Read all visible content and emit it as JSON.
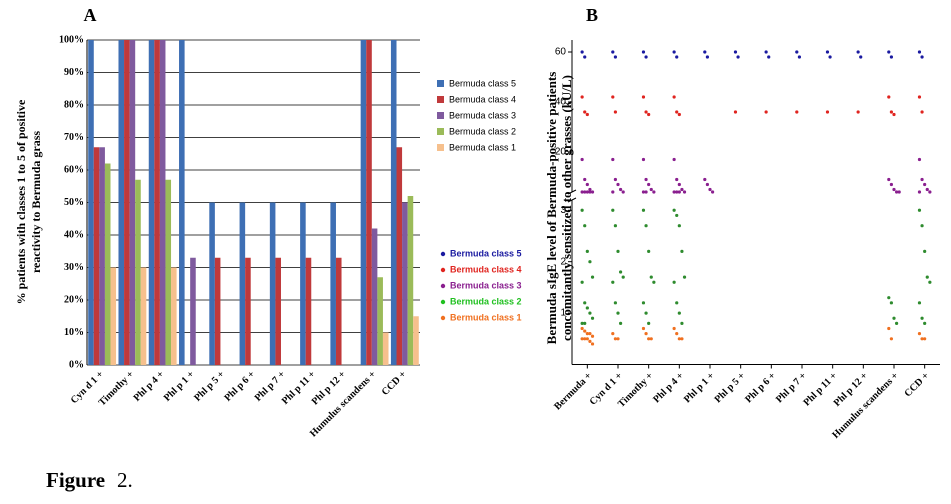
{
  "chart_data": [
    {
      "type": "bar",
      "title": "A",
      "ylabel": [
        "% patients with classes 1 to 5 of positive",
        "reactivity to Bermuda grass"
      ],
      "categories": [
        "Cyn d 1 +",
        "Timothy +",
        "Phl p 4 +",
        "Phl p 1 +",
        "Phl p 5 +",
        "Phl p 6 +",
        "Phl p 7 +",
        "Phl p 11 +",
        "Phl p 12 +",
        "Humulus scandens +",
        "CCD +"
      ],
      "series": [
        {
          "name": "Bermuda class 5",
          "color": "#3e6fb4",
          "values": [
            100,
            100,
            100,
            100,
            50,
            50,
            50,
            50,
            50,
            100,
            100
          ]
        },
        {
          "name": "Bermuda class 4",
          "color": "#c0393b",
          "values": [
            67,
            100,
            100,
            0,
            33,
            33,
            33,
            33,
            33,
            100,
            67
          ]
        },
        {
          "name": "Bermuda class 3",
          "color": "#7f5a9e",
          "values": [
            67,
            100,
            100,
            33,
            0,
            0,
            0,
            0,
            0,
            42,
            50
          ]
        },
        {
          "name": "Bermuda class 2",
          "color": "#9bbb59",
          "values": [
            62,
            57,
            57,
            0,
            0,
            0,
            0,
            0,
            0,
            27,
            52
          ]
        },
        {
          "name": "Bermuda class 1",
          "color": "#f6c08d",
          "values": [
            30,
            30,
            30,
            0,
            0,
            0,
            0,
            0,
            0,
            10,
            15
          ]
        }
      ],
      "ylim": [
        0,
        100
      ],
      "yticks": [
        {
          "value": 0,
          "label": "0%"
        },
        {
          "value": 10,
          "label": "10%"
        },
        {
          "value": 20,
          "label": "20%"
        },
        {
          "value": 30,
          "label": "30%"
        },
        {
          "value": 40,
          "label": "40%"
        },
        {
          "value": 50,
          "label": "50%"
        },
        {
          "value": 60,
          "label": "60%"
        },
        {
          "value": 70,
          "label": "70%"
        },
        {
          "value": 80,
          "label": "80%"
        },
        {
          "value": 90,
          "label": "90%"
        },
        {
          "value": 100,
          "label": "100%"
        }
      ],
      "grid": true,
      "legend": "right"
    },
    {
      "type": "scatter",
      "title": "B",
      "ylabel": [
        "Bermuda  sIgE level of Bermuda-positive patients",
        "concomitantly sensitized to other grasses (kU/L)"
      ],
      "categories": [
        "Bermuda +",
        "Cyn d 1 +",
        "Timothy +",
        "Phl p 4 +",
        "Phl p 1 +",
        "Phl p 5 +",
        "Phl p 6 +",
        "Phl p 7 +",
        "Phl p 11 +",
        "Phl p 12 +",
        "Humulus scandens +",
        "CCD +"
      ],
      "series": [
        {
          "name": "Bermuda class 5",
          "color": "#1a1aa0",
          "values": [
            [
              60,
              58
            ],
            [
              60,
              58
            ],
            [
              60,
              58
            ],
            [
              60,
              58
            ],
            [
              60,
              58
            ],
            [
              60,
              58
            ],
            [
              60,
              58
            ],
            [
              60,
              58
            ],
            [
              60,
              58
            ],
            [
              60,
              58
            ],
            [
              60,
              58
            ],
            [
              60,
              58
            ]
          ]
        },
        {
          "name": "Bermuda class 4",
          "color": "#e0241f",
          "values": [
            [
              42,
              36,
              35
            ],
            [
              42,
              36
            ],
            [
              42,
              36,
              35
            ],
            [
              42,
              36,
              35
            ],
            [],
            [
              36
            ],
            [
              36
            ],
            [
              36
            ],
            [
              36
            ],
            [
              36
            ],
            [
              42,
              36,
              35
            ],
            [
              42,
              36
            ]
          ]
        },
        {
          "name": "Bermuda class 3",
          "color": "#8a1f8f",
          "values": [
            [
              17,
              9,
              7,
              5,
              4,
              4,
              4,
              4,
              4
            ],
            [
              17,
              9,
              7,
              5,
              4,
              4
            ],
            [
              17,
              9,
              7,
              5,
              4,
              4,
              4
            ],
            [
              17,
              9,
              7,
              5,
              4,
              4,
              4,
              4
            ],
            [
              9,
              7,
              5,
              4
            ],
            [],
            [],
            [],
            [],
            [],
            [
              9,
              7,
              5,
              4,
              4
            ],
            [
              17,
              9,
              7,
              5,
              4,
              4
            ]
          ]
        },
        {
          "name": "Bermuda class 2",
          "color": "#2e8b2e",
          "values": [
            [
              3.0,
              2.7,
              2.2,
              2.0,
              1.7,
              1.6,
              1.2,
              1.1,
              1.0,
              0.9,
              0.8,
              0.8
            ],
            [
              3.0,
              2.7,
              2.2,
              1.8,
              1.7,
              1.6,
              1.2,
              1.0,
              0.8
            ],
            [
              3.0,
              2.7,
              2.2,
              1.7,
              1.6,
              1.2,
              1.0,
              0.8
            ],
            [
              3.0,
              2.9,
              2.7,
              2.2,
              1.7,
              1.6,
              1.2,
              1.0,
              0.8
            ],
            [],
            [],
            [],
            [],
            [],
            [],
            [
              1.3,
              1.2,
              0.9,
              0.8
            ],
            [
              3.0,
              2.7,
              2.2,
              1.7,
              1.6,
              1.2,
              0.9,
              0.8
            ]
          ]
        },
        {
          "name": "Bermuda class 1",
          "color": "#f07020",
          "values": [
            [
              0.7,
              0.65,
              0.6,
              0.6,
              0.55,
              0.5,
              0.5,
              0.5,
              0.45,
              0.4
            ],
            [
              0.6,
              0.5,
              0.5
            ],
            [
              0.7,
              0.6,
              0.5,
              0.5
            ],
            [
              0.7,
              0.6,
              0.5,
              0.5
            ],
            [],
            [],
            [],
            [],
            [],
            [],
            [
              0.7,
              0.5
            ],
            [
              0.6,
              0.5,
              0.5
            ]
          ]
        }
      ],
      "ylim_lower": [
        0,
        3.2
      ],
      "yticks_lower": [
        1,
        2,
        3
      ],
      "ylim_upper": [
        4,
        62
      ],
      "yticks_upper": [
        20,
        40,
        60
      ],
      "legend_colors": [
        "#1a1aa0",
        "#e0241f",
        "#8a1f8f",
        "#20c020",
        "#f07020"
      ],
      "legend": "left"
    }
  ],
  "figure_label": "Figure",
  "figure_number": "2."
}
